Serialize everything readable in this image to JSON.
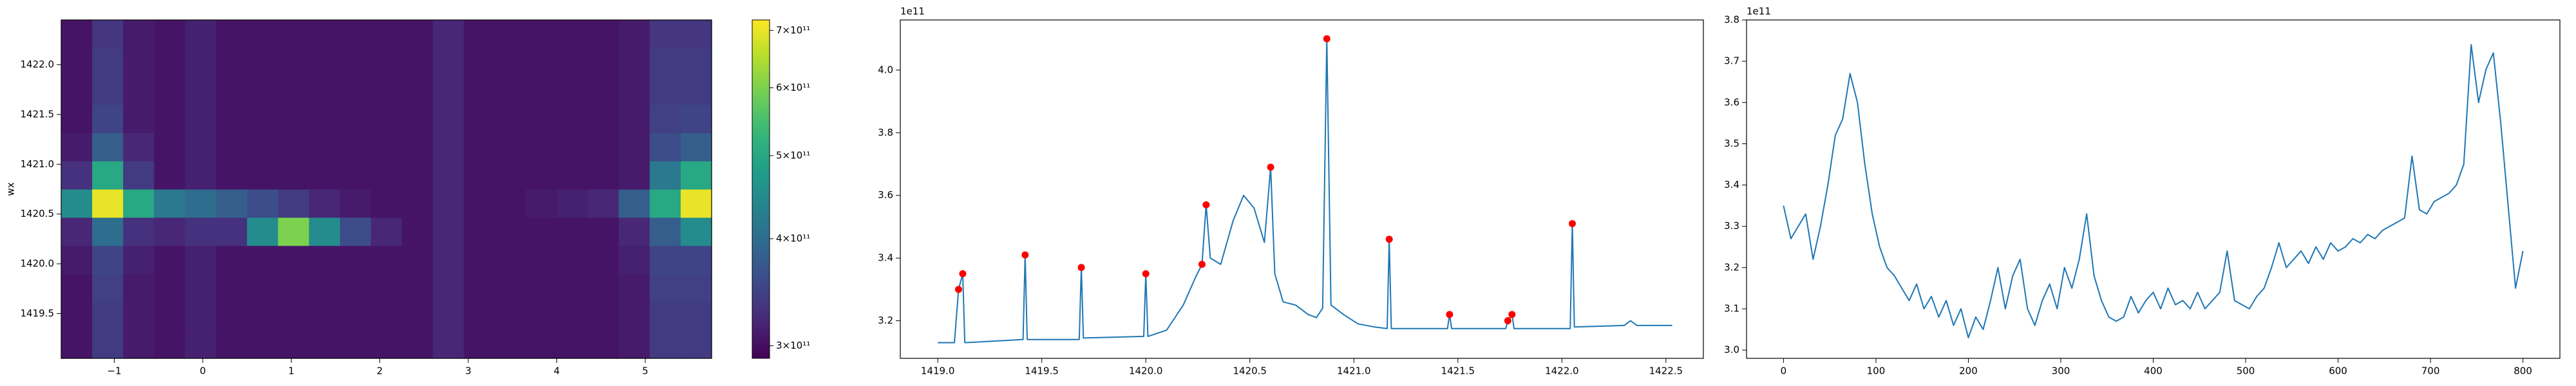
{
  "chart_data": [
    {
      "type": "heatmap",
      "ylabel": "wx",
      "xlim": [
        -1.6,
        5.75
      ],
      "ylim": [
        1419.05,
        1422.45
      ],
      "xticks": [
        {
          "value": -1,
          "label": "−1"
        },
        0,
        1,
        2,
        3,
        4,
        5
      ],
      "yticks": [
        1419.5,
        {
          "value": 1420,
          "label": "1420.0"
        },
        1420.5,
        {
          "value": 1421,
          "label": "1421.0"
        },
        1421.5,
        {
          "value": 1422,
          "label": "1422.0"
        }
      ],
      "colormap": "viridis",
      "color_scale": "log",
      "clim": [
        290000000000.0,
        720000000000.0
      ],
      "cticks": [
        {
          "value": 300000000000.0,
          "label": "3×10¹¹"
        },
        {
          "value": 400000000000.0,
          "label": "4×10¹¹"
        },
        {
          "value": 500000000000.0,
          "label": "5×10¹¹"
        },
        {
          "value": 600000000000.0,
          "label": "6×10¹¹"
        },
        {
          "value": 700000000000.0,
          "label": "7×10¹¹"
        }
      ],
      "z": [
        [
          305000000000.0,
          340000000000.0,
          310000000000.0,
          305000000000.0,
          315000000000.0,
          305000000000.0,
          305000000000.0,
          305000000000.0,
          305000000000.0,
          305000000000.0,
          305000000000.0,
          305000000000.0,
          320000000000.0,
          305000000000.0,
          305000000000.0,
          305000000000.0,
          305000000000.0,
          305000000000.0,
          310000000000.0,
          340000000000.0,
          340000000000.0
        ],
        [
          305000000000.0,
          340000000000.0,
          310000000000.0,
          305000000000.0,
          315000000000.0,
          305000000000.0,
          305000000000.0,
          305000000000.0,
          305000000000.0,
          305000000000.0,
          305000000000.0,
          305000000000.0,
          320000000000.0,
          305000000000.0,
          305000000000.0,
          305000000000.0,
          305000000000.0,
          305000000000.0,
          310000000000.0,
          340000000000.0,
          340000000000.0
        ],
        [
          305000000000.0,
          345000000000.0,
          310000000000.0,
          305000000000.0,
          315000000000.0,
          305000000000.0,
          305000000000.0,
          305000000000.0,
          305000000000.0,
          305000000000.0,
          305000000000.0,
          305000000000.0,
          320000000000.0,
          305000000000.0,
          305000000000.0,
          305000000000.0,
          305000000000.0,
          305000000000.0,
          310000000000.0,
          345000000000.0,
          345000000000.0
        ],
        [
          310000000000.0,
          350000000000.0,
          315000000000.0,
          305000000000.0,
          315000000000.0,
          305000000000.0,
          305000000000.0,
          305000000000.0,
          305000000000.0,
          305000000000.0,
          305000000000.0,
          305000000000.0,
          320000000000.0,
          305000000000.0,
          305000000000.0,
          305000000000.0,
          305000000000.0,
          305000000000.0,
          315000000000.0,
          350000000000.0,
          350000000000.0
        ],
        [
          320000000000.0,
          400000000000.0,
          330000000000.0,
          320000000000.0,
          330000000000.0,
          330000000000.0,
          450000000000.0,
          600000000000.0,
          450000000000.0,
          360000000000.0,
          320000000000.0,
          305000000000.0,
          320000000000.0,
          305000000000.0,
          305000000000.0,
          305000000000.0,
          305000000000.0,
          305000000000.0,
          320000000000.0,
          380000000000.0,
          450000000000.0
        ],
        [
          450000000000.0,
          700000000000.0,
          500000000000.0,
          420000000000.0,
          400000000000.0,
          380000000000.0,
          360000000000.0,
          340000000000.0,
          320000000000.0,
          310000000000.0,
          305000000000.0,
          305000000000.0,
          320000000000.0,
          305000000000.0,
          305000000000.0,
          310000000000.0,
          315000000000.0,
          320000000000.0,
          380000000000.0,
          500000000000.0,
          700000000000.0
        ],
        [
          330000000000.0,
          500000000000.0,
          340000000000.0,
          305000000000.0,
          315000000000.0,
          305000000000.0,
          305000000000.0,
          305000000000.0,
          305000000000.0,
          305000000000.0,
          305000000000.0,
          305000000000.0,
          320000000000.0,
          305000000000.0,
          305000000000.0,
          305000000000.0,
          305000000000.0,
          305000000000.0,
          310000000000.0,
          420000000000.0,
          500000000000.0
        ],
        [
          310000000000.0,
          380000000000.0,
          320000000000.0,
          305000000000.0,
          315000000000.0,
          305000000000.0,
          305000000000.0,
          305000000000.0,
          305000000000.0,
          305000000000.0,
          305000000000.0,
          305000000000.0,
          320000000000.0,
          305000000000.0,
          305000000000.0,
          305000000000.0,
          305000000000.0,
          305000000000.0,
          310000000000.0,
          360000000000.0,
          380000000000.0
        ],
        [
          305000000000.0,
          350000000000.0,
          310000000000.0,
          305000000000.0,
          315000000000.0,
          305000000000.0,
          305000000000.0,
          305000000000.0,
          305000000000.0,
          305000000000.0,
          305000000000.0,
          305000000000.0,
          320000000000.0,
          305000000000.0,
          305000000000.0,
          305000000000.0,
          305000000000.0,
          305000000000.0,
          310000000000.0,
          345000000000.0,
          350000000000.0
        ],
        [
          305000000000.0,
          340000000000.0,
          310000000000.0,
          305000000000.0,
          315000000000.0,
          305000000000.0,
          305000000000.0,
          305000000000.0,
          305000000000.0,
          305000000000.0,
          305000000000.0,
          305000000000.0,
          320000000000.0,
          305000000000.0,
          305000000000.0,
          305000000000.0,
          305000000000.0,
          305000000000.0,
          310000000000.0,
          340000000000.0,
          340000000000.0
        ],
        [
          305000000000.0,
          340000000000.0,
          310000000000.0,
          305000000000.0,
          315000000000.0,
          305000000000.0,
          305000000000.0,
          305000000000.0,
          305000000000.0,
          305000000000.0,
          305000000000.0,
          305000000000.0,
          320000000000.0,
          305000000000.0,
          305000000000.0,
          305000000000.0,
          305000000000.0,
          305000000000.0,
          310000000000.0,
          340000000000.0,
          340000000000.0
        ],
        [
          305000000000.0,
          335000000000.0,
          310000000000.0,
          305000000000.0,
          315000000000.0,
          305000000000.0,
          305000000000.0,
          305000000000.0,
          305000000000.0,
          305000000000.0,
          305000000000.0,
          305000000000.0,
          320000000000.0,
          305000000000.0,
          305000000000.0,
          305000000000.0,
          305000000000.0,
          305000000000.0,
          310000000000.0,
          335000000000.0,
          335000000000.0
        ]
      ]
    },
    {
      "type": "line",
      "offset_text": "1e11",
      "xlim": [
        1418.82,
        1422.68
      ],
      "ylim": [
        3.08,
        4.16
      ],
      "xticks": [
        {
          "value": 1419,
          "label": "1419.0"
        },
        1419.5,
        {
          "value": 1420,
          "label": "1420.0"
        },
        1420.5,
        {
          "value": 1421,
          "label": "1421.0"
        },
        1421.5,
        {
          "value": 1422,
          "label": "1422.0"
        },
        1422.5
      ],
      "yticks": [
        3.2,
        3.4,
        3.6,
        3.8,
        {
          "value": 4,
          "label": "4.0"
        }
      ],
      "series": [
        {
          "color": "#1f77b4",
          "x": [
            1419.0,
            1419.08,
            1419.1,
            1419.12,
            1419.13,
            1419.41,
            1419.42,
            1419.43,
            1419.68,
            1419.69,
            1419.7,
            1419.99,
            1420.0,
            1420.01,
            1420.1,
            1420.18,
            1420.24,
            1420.27,
            1420.29,
            1420.31,
            1420.36,
            1420.42,
            1420.47,
            1420.52,
            1420.57,
            1420.6,
            1420.62,
            1420.66,
            1420.72,
            1420.78,
            1420.82,
            1420.85,
            1420.87,
            1420.89,
            1420.95,
            1421.02,
            1421.1,
            1421.16,
            1421.17,
            1421.18,
            1421.45,
            1421.46,
            1421.47,
            1421.73,
            1421.74,
            1421.76,
            1421.77,
            1422.04,
            1422.05,
            1422.06,
            1422.3,
            1422.33,
            1422.36,
            1422.53
          ],
          "y": [
            3.13,
            3.13,
            3.3,
            3.35,
            3.13,
            3.14,
            3.41,
            3.14,
            3.14,
            3.37,
            3.145,
            3.15,
            3.35,
            3.15,
            3.17,
            3.25,
            3.34,
            3.38,
            3.57,
            3.4,
            3.38,
            3.52,
            3.6,
            3.56,
            3.45,
            3.69,
            3.35,
            3.26,
            3.25,
            3.22,
            3.21,
            3.24,
            4.1,
            3.25,
            3.22,
            3.19,
            3.18,
            3.175,
            3.46,
            3.175,
            3.175,
            3.22,
            3.175,
            3.175,
            3.2,
            3.22,
            3.175,
            3.175,
            3.51,
            3.18,
            3.185,
            3.2,
            3.185,
            3.185
          ]
        },
        {
          "kind": "scatter",
          "color": "#ff0000",
          "x": [
            1419.1,
            1419.12,
            1419.42,
            1419.69,
            1420.0,
            1420.27,
            1420.29,
            1420.6,
            1420.87,
            1421.17,
            1421.46,
            1421.74,
            1421.76,
            1422.05
          ],
          "y": [
            3.3,
            3.35,
            3.41,
            3.37,
            3.35,
            3.38,
            3.57,
            3.69,
            4.1,
            3.46,
            3.22,
            3.2,
            3.22,
            3.51
          ]
        }
      ]
    },
    {
      "type": "line",
      "offset_text": "1e11",
      "xlim": [
        -40,
        840
      ],
      "ylim": [
        2.98,
        3.8
      ],
      "xticks": [
        0,
        100,
        200,
        300,
        400,
        500,
        600,
        700,
        800
      ],
      "yticks": [
        {
          "value": 3,
          "label": "3.0"
        },
        3.1,
        3.2,
        3.3,
        3.4,
        3.5,
        3.6,
        3.7,
        3.8
      ],
      "series": [
        {
          "color": "#1f77b4",
          "x": [
            0,
            8,
            16,
            24,
            32,
            40,
            48,
            56,
            64,
            72,
            80,
            88,
            96,
            104,
            112,
            120,
            128,
            136,
            144,
            152,
            160,
            168,
            176,
            184,
            192,
            200,
            208,
            216,
            224,
            232,
            240,
            248,
            256,
            264,
            272,
            280,
            288,
            296,
            304,
            312,
            320,
            328,
            336,
            344,
            352,
            360,
            368,
            376,
            384,
            392,
            400,
            408,
            416,
            424,
            432,
            440,
            448,
            456,
            464,
            472,
            480,
            488,
            496,
            504,
            512,
            520,
            528,
            536,
            544,
            552,
            560,
            568,
            576,
            584,
            592,
            600,
            608,
            616,
            624,
            632,
            640,
            648,
            656,
            664,
            672,
            680,
            688,
            696,
            704,
            712,
            720,
            728,
            736,
            744,
            752,
            760,
            768,
            776,
            784,
            792,
            800
          ],
          "y": [
            3.35,
            3.27,
            3.3,
            3.33,
            3.22,
            3.3,
            3.4,
            3.52,
            3.56,
            3.67,
            3.6,
            3.45,
            3.33,
            3.25,
            3.2,
            3.18,
            3.15,
            3.12,
            3.16,
            3.1,
            3.13,
            3.08,
            3.12,
            3.06,
            3.1,
            3.03,
            3.08,
            3.05,
            3.12,
            3.2,
            3.1,
            3.18,
            3.22,
            3.1,
            3.06,
            3.12,
            3.16,
            3.1,
            3.2,
            3.15,
            3.22,
            3.33,
            3.18,
            3.12,
            3.08,
            3.07,
            3.08,
            3.13,
            3.09,
            3.12,
            3.14,
            3.1,
            3.15,
            3.11,
            3.12,
            3.1,
            3.14,
            3.1,
            3.12,
            3.14,
            3.24,
            3.12,
            3.11,
            3.1,
            3.13,
            3.15,
            3.2,
            3.26,
            3.2,
            3.22,
            3.24,
            3.21,
            3.25,
            3.22,
            3.26,
            3.24,
            3.25,
            3.27,
            3.26,
            3.28,
            3.27,
            3.29,
            3.3,
            3.31,
            3.32,
            3.47,
            3.34,
            3.33,
            3.36,
            3.37,
            3.38,
            3.4,
            3.45,
            3.74,
            3.6,
            3.68,
            3.72,
            3.55,
            3.35,
            3.15,
            3.24
          ]
        }
      ]
    }
  ]
}
